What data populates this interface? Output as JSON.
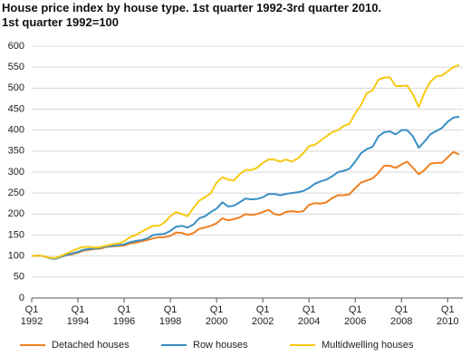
{
  "chart_data": {
    "type": "line",
    "title": "House price index by house type. 1st quarter 1992-3rd quarter 2010.",
    "subtitle": "1st quarter 1992=100",
    "categories": [
      "Q1\n1992",
      null,
      null,
      null,
      null,
      null,
      null,
      null,
      "Q1\n1994",
      null,
      null,
      null,
      null,
      null,
      null,
      null,
      "Q1\n1996",
      null,
      null,
      null,
      null,
      null,
      null,
      null,
      "Q1\n1998",
      null,
      null,
      null,
      null,
      null,
      null,
      null,
      "Q1\n2000",
      null,
      null,
      null,
      null,
      null,
      null,
      null,
      "Q1\n2002",
      null,
      null,
      null,
      null,
      null,
      null,
      null,
      "Q1\n2004",
      null,
      null,
      null,
      null,
      null,
      null,
      null,
      "Q1\n2006",
      null,
      null,
      null,
      null,
      null,
      null,
      null,
      "Q1\n2008",
      null,
      null,
      null,
      null,
      null,
      null,
      null,
      "Q1\n2010",
      null,
      null
    ],
    "ylim": [
      0,
      600
    ],
    "yticks": [
      0,
      50,
      100,
      150,
      200,
      250,
      300,
      350,
      400,
      450,
      500,
      550,
      600
    ],
    "grid": true,
    "legend": "bottom",
    "series": [
      {
        "name": "Detached houses",
        "color": "#f07f20",
        "values": [
          100,
          101,
          100,
          96,
          95,
          98,
          102,
          104,
          108,
          113,
          115,
          117,
          118,
          122,
          123,
          124,
          125,
          130,
          132,
          135,
          138,
          142,
          145,
          145,
          148,
          156,
          155,
          150,
          155,
          165,
          168,
          172,
          178,
          190,
          185,
          188,
          192,
          200,
          198,
          200,
          205,
          210,
          200,
          198,
          205,
          207,
          205,
          207,
          222,
          226,
          225,
          228,
          238,
          245,
          245,
          247,
          262,
          275,
          280,
          285,
          298,
          315,
          315,
          310,
          318,
          325,
          310,
          295,
          305,
          320,
          322,
          322,
          335,
          348,
          342
        ]
      },
      {
        "name": "Row houses",
        "color": "#3a8fc4",
        "values": [
          100,
          101,
          100,
          95,
          93,
          98,
          103,
          106,
          110,
          115,
          117,
          118,
          120,
          123,
          124,
          126,
          128,
          133,
          136,
          138,
          142,
          150,
          152,
          153,
          160,
          170,
          172,
          168,
          175,
          190,
          195,
          205,
          213,
          228,
          218,
          220,
          228,
          237,
          235,
          236,
          240,
          248,
          248,
          245,
          248,
          250,
          252,
          255,
          262,
          272,
          278,
          282,
          290,
          300,
          303,
          308,
          325,
          345,
          355,
          360,
          385,
          395,
          397,
          390,
          400,
          400,
          385,
          358,
          373,
          390,
          398,
          405,
          420,
          430,
          432
        ]
      },
      {
        "name": "Multidwelling houses",
        "color": "#f7c912",
        "values": [
          100,
          101,
          100,
          96,
          95,
          100,
          106,
          112,
          118,
          122,
          122,
          120,
          122,
          125,
          128,
          130,
          135,
          145,
          150,
          158,
          165,
          172,
          172,
          180,
          195,
          205,
          200,
          195,
          215,
          232,
          240,
          250,
          275,
          288,
          282,
          280,
          295,
          305,
          305,
          310,
          322,
          330,
          330,
          325,
          330,
          325,
          332,
          345,
          362,
          365,
          375,
          385,
          395,
          400,
          410,
          415,
          440,
          460,
          488,
          495,
          520,
          525,
          526,
          505,
          505,
          506,
          485,
          455,
          490,
          515,
          528,
          530,
          540,
          550,
          555
        ]
      }
    ]
  }
}
